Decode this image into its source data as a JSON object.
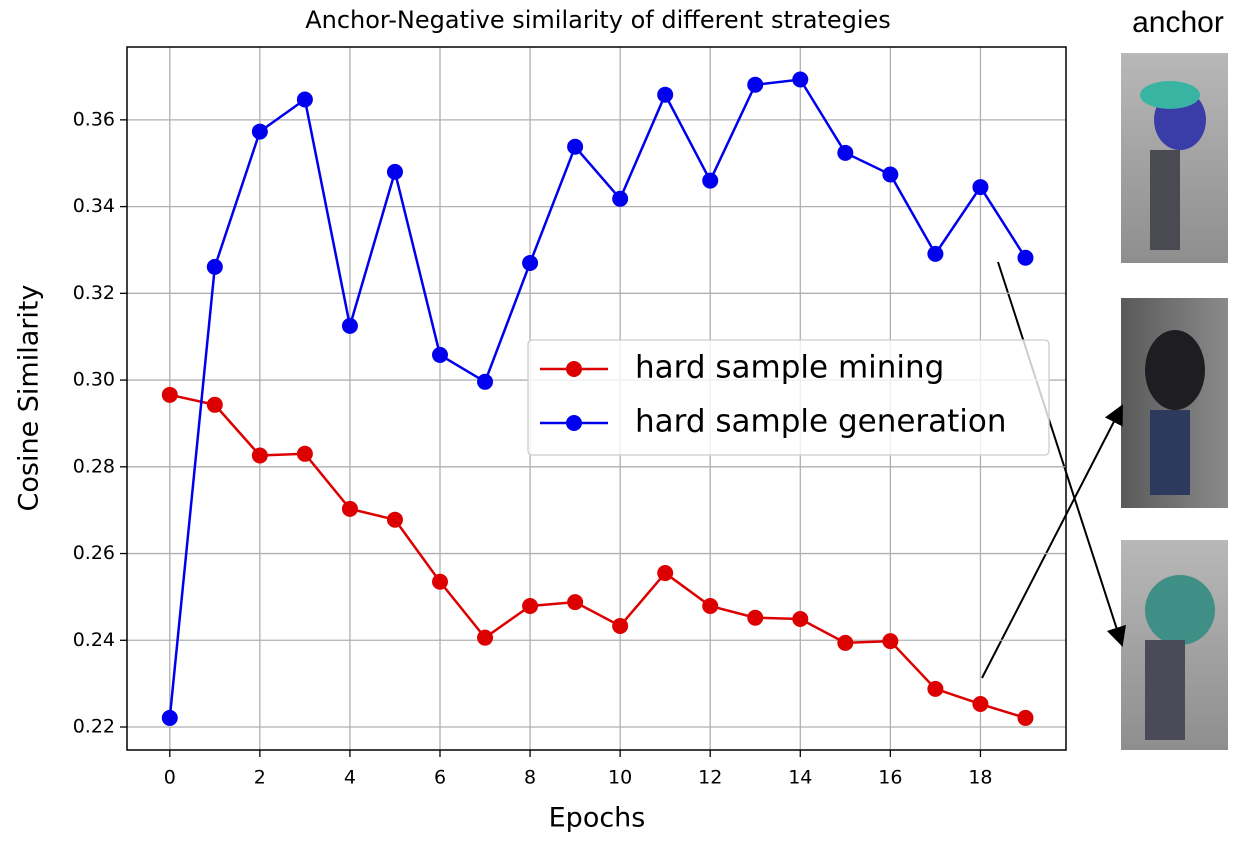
{
  "chart_data": {
    "type": "line",
    "title": "Anchor-Negative similarity of different strategies",
    "x_label": "Epochs",
    "y_label": "Cosine Similarity",
    "x": [
      0,
      1,
      2,
      3,
      4,
      5,
      6,
      7,
      8,
      9,
      10,
      11,
      12,
      13,
      14,
      15,
      16,
      17,
      18,
      19
    ],
    "series": [
      {
        "name": "hard sample mining",
        "color": "#dd0000",
        "values": [
          0.2966,
          0.2943,
          0.2826,
          0.283,
          0.2703,
          0.2678,
          0.2535,
          0.2406,
          0.2479,
          0.2488,
          0.2433,
          0.2555,
          0.2479,
          0.2452,
          0.2449,
          0.2394,
          0.2398,
          0.2288,
          0.2253,
          0.2221
        ]
      },
      {
        "name": "hard sample generation",
        "color": "#0000ee",
        "values": [
          0.2221,
          0.3261,
          0.3573,
          0.3647,
          0.3125,
          0.348,
          0.3058,
          0.2996,
          0.327,
          0.3538,
          0.3418,
          0.3658,
          0.346,
          0.3681,
          0.3693,
          0.3524,
          0.3474,
          0.3291,
          0.3445,
          0.3282
        ]
      }
    ],
    "xlim": [
      -0.95,
      19.9
    ],
    "ylim": [
      0.2147,
      0.3768
    ],
    "xticks": [
      0,
      2,
      4,
      6,
      8,
      10,
      12,
      14,
      16,
      18
    ],
    "yticks": [
      {
        "value": 0.22,
        "label": "0.22"
      },
      {
        "value": 0.24,
        "label": "0.24"
      },
      {
        "value": 0.26,
        "label": "0.26"
      },
      {
        "value": 0.28,
        "label": "0.28"
      },
      {
        "value": 0.3,
        "label": "0.30"
      },
      {
        "value": 0.32,
        "label": "0.32"
      },
      {
        "value": 0.34,
        "label": "0.34"
      },
      {
        "value": 0.36,
        "label": "0.36"
      }
    ],
    "grid": true,
    "legend": "center right"
  },
  "side_panel": {
    "label": "anchor"
  }
}
